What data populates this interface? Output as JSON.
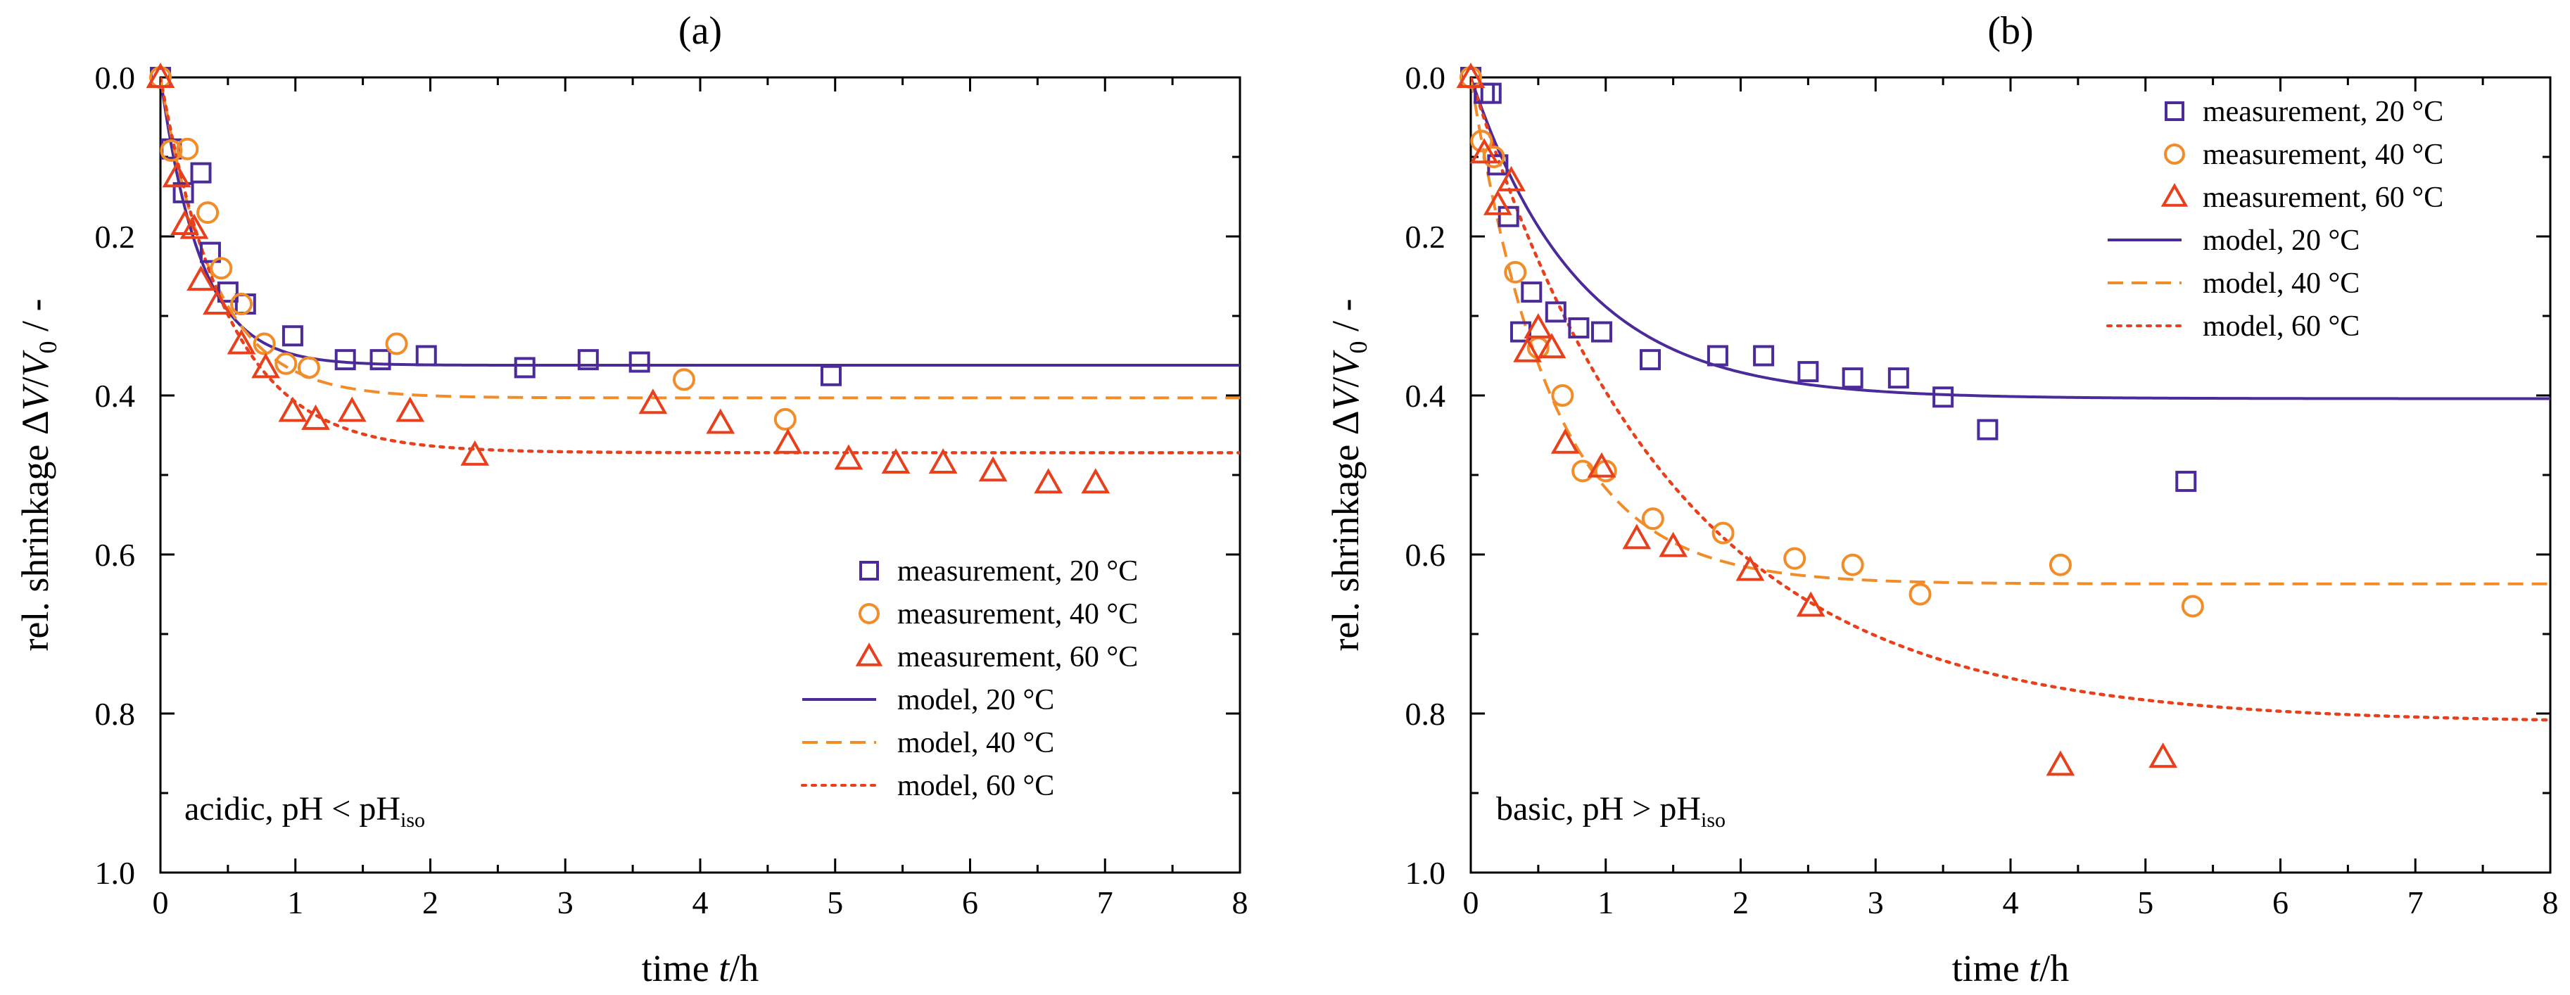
{
  "figure": {
    "background": "#ffffff",
    "colors": {
      "20": "#4b2a99",
      "40": "#f28c28",
      "60": "#e8401c"
    }
  },
  "chart_data": [
    {
      "type": "scatter",
      "panel_title": "(a)",
      "title": "(a)",
      "xlabel": "time t/h",
      "xlabel_parts": {
        "prefix": "time ",
        "var": "t",
        "suffix": "/h"
      },
      "ylabel": "rel. shrinkage ΔV/V0 / -",
      "ylabel_parts": {
        "prefix": "rel. shrinkage Δ",
        "v1": "V",
        "slash": "/",
        "v2": "V",
        "sub": "0",
        "suffix": " / -"
      },
      "xlim": [
        0,
        8
      ],
      "ylim": [
        0,
        1
      ],
      "y_inverted": true,
      "x_ticks": [
        0,
        1,
        2,
        3,
        4,
        5,
        6,
        7,
        8
      ],
      "y_ticks": [
        0.0,
        0.2,
        0.4,
        0.6,
        0.8,
        1.0
      ],
      "x_tick_labels": [
        "0",
        "1",
        "2",
        "3",
        "4",
        "5",
        "6",
        "7",
        "8"
      ],
      "y_tick_labels": [
        "0.0",
        "0.2",
        "0.4",
        "0.6",
        "0.8",
        "1.0"
      ],
      "annotation": {
        "text": "acidic, pH < pH",
        "sub": "iso"
      },
      "legend_position": "bottom-right",
      "legend": [
        {
          "label": "measurement, 20 °C",
          "kind": "square",
          "series": "20"
        },
        {
          "label": "measurement, 40 °C",
          "kind": "circle",
          "series": "40"
        },
        {
          "label": "measurement, 60 °C",
          "kind": "triangle",
          "series": "60"
        },
        {
          "label": "model, 20 °C",
          "kind": "solid",
          "series": "20"
        },
        {
          "label": "model, 40 °C",
          "kind": "dashed",
          "series": "40"
        },
        {
          "label": "model, 60 °C",
          "kind": "dotted",
          "series": "60"
        }
      ],
      "measurements": [
        {
          "name": "measurement, 20 °C",
          "series": "20",
          "marker": "square",
          "x": [
            0,
            0.08,
            0.17,
            0.3,
            0.37,
            0.5,
            0.63,
            0.98,
            1.37,
            1.63,
            1.97,
            2.7,
            3.17,
            3.55,
            4.97
          ],
          "y": [
            0,
            0.09,
            0.145,
            0.12,
            0.22,
            0.27,
            0.285,
            0.325,
            0.355,
            0.355,
            0.35,
            0.365,
            0.355,
            0.358,
            0.375
          ]
        },
        {
          "name": "measurement, 40 °C",
          "series": "40",
          "marker": "circle",
          "x": [
            0,
            0.08,
            0.2,
            0.35,
            0.45,
            0.6,
            0.77,
            0.93,
            1.1,
            1.75,
            3.88,
            4.63
          ],
          "y": [
            0,
            0.092,
            0.09,
            0.17,
            0.24,
            0.285,
            0.335,
            0.36,
            0.365,
            0.335,
            0.38,
            0.43
          ]
        },
        {
          "name": "measurement, 60 °C",
          "series": "60",
          "marker": "triangle",
          "x": [
            0,
            0.12,
            0.18,
            0.25,
            0.3,
            0.42,
            0.6,
            0.78,
            0.98,
            1.15,
            1.42,
            1.85,
            2.33,
            3.65,
            4.15,
            4.65,
            5.1,
            5.45,
            5.8,
            6.17,
            6.58,
            6.93
          ],
          "y": [
            0,
            0.125,
            0.185,
            0.19,
            0.255,
            0.285,
            0.335,
            0.365,
            0.42,
            0.43,
            0.42,
            0.42,
            0.475,
            0.41,
            0.435,
            0.46,
            0.48,
            0.485,
            0.485,
            0.495,
            0.51,
            0.51
          ]
        }
      ],
      "models": [
        {
          "name": "model, 20 °C",
          "series": "20",
          "style": "solid",
          "y_inf": 0.362,
          "tau": 0.3
        },
        {
          "name": "model, 40 °C",
          "series": "40",
          "style": "dashed",
          "y_inf": 0.403,
          "tau": 0.4
        },
        {
          "name": "model, 60 °C",
          "series": "60",
          "style": "dotted",
          "y_inf": 0.472,
          "tau": 0.5
        }
      ]
    },
    {
      "type": "scatter",
      "panel_title": "(b)",
      "title": "(b)",
      "xlabel": "time t/h",
      "xlabel_parts": {
        "prefix": "time ",
        "var": "t",
        "suffix": "/h"
      },
      "ylabel": "rel. shrinkage ΔV/V0 / -",
      "ylabel_parts": {
        "prefix": "rel. shrinkage Δ",
        "v1": "V",
        "slash": "/",
        "v2": "V",
        "sub": "0",
        "suffix": " / -"
      },
      "xlim": [
        0,
        8
      ],
      "ylim": [
        0,
        1
      ],
      "y_inverted": true,
      "x_ticks": [
        0,
        1,
        2,
        3,
        4,
        5,
        6,
        7,
        8
      ],
      "y_ticks": [
        0.0,
        0.2,
        0.4,
        0.6,
        0.8,
        1.0
      ],
      "x_tick_labels": [
        "0",
        "1",
        "2",
        "3",
        "4",
        "5",
        "6",
        "7",
        "8"
      ],
      "y_tick_labels": [
        "0.0",
        "0.2",
        "0.4",
        "0.6",
        "0.8",
        "1.0"
      ],
      "annotation": {
        "text": "basic, pH > pH",
        "sub": "iso"
      },
      "legend_position": "top-right",
      "legend": [
        {
          "label": "measurement, 20 °C",
          "kind": "square",
          "series": "20"
        },
        {
          "label": "measurement, 40 °C",
          "kind": "circle",
          "series": "40"
        },
        {
          "label": "measurement, 60 °C",
          "kind": "triangle",
          "series": "60"
        },
        {
          "label": "model, 20 °C",
          "kind": "solid",
          "series": "20"
        },
        {
          "label": "model, 40 °C",
          "kind": "dashed",
          "series": "40"
        },
        {
          "label": "model, 60 °C",
          "kind": "dotted",
          "series": "60"
        }
      ],
      "measurements": [
        {
          "name": "measurement, 20 °C",
          "series": "20",
          "marker": "square",
          "x": [
            0,
            0.1,
            0.15,
            0.2,
            0.28,
            0.37,
            0.45,
            0.63,
            0.8,
            0.97,
            1.33,
            1.83,
            2.17,
            2.5,
            2.83,
            3.17,
            3.5,
            3.83,
            5.3
          ],
          "y": [
            0,
            0.02,
            0.02,
            0.11,
            0.175,
            0.32,
            0.27,
            0.295,
            0.315,
            0.32,
            0.355,
            0.35,
            0.35,
            0.37,
            0.378,
            0.378,
            0.402,
            0.443,
            0.508
          ]
        },
        {
          "name": "measurement, 40 °C",
          "series": "40",
          "marker": "circle",
          "x": [
            0,
            0.08,
            0.17,
            0.33,
            0.5,
            0.68,
            0.83,
            1.0,
            1.35,
            1.87,
            2.4,
            2.83,
            3.33,
            4.37,
            5.35
          ],
          "y": [
            0,
            0.08,
            0.1,
            0.245,
            0.34,
            0.4,
            0.495,
            0.495,
            0.555,
            0.573,
            0.605,
            0.613,
            0.65,
            0.613,
            0.665
          ]
        },
        {
          "name": "measurement, 60 °C",
          "series": "60",
          "marker": "triangle",
          "x": [
            0,
            0.1,
            0.2,
            0.3,
            0.42,
            0.5,
            0.6,
            0.7,
            0.97,
            1.23,
            1.5,
            2.07,
            2.52,
            4.37,
            5.13
          ],
          "y": [
            0,
            0.095,
            0.16,
            0.13,
            0.345,
            0.315,
            0.34,
            0.46,
            0.49,
            0.58,
            0.59,
            0.62,
            0.665,
            0.865,
            0.855
          ]
        }
      ],
      "models": [
        {
          "name": "model, 20 °C",
          "series": "20",
          "style": "solid",
          "y_inf": 0.404,
          "tau": 0.8
        },
        {
          "name": "model, 40 °C",
          "series": "40",
          "style": "dashed",
          "y_inf": 0.637,
          "tau": 0.6
        },
        {
          "name": "model, 60 °C",
          "series": "60",
          "style": "dotted",
          "y_inf": 0.812,
          "tau": 1.5
        }
      ]
    }
  ]
}
